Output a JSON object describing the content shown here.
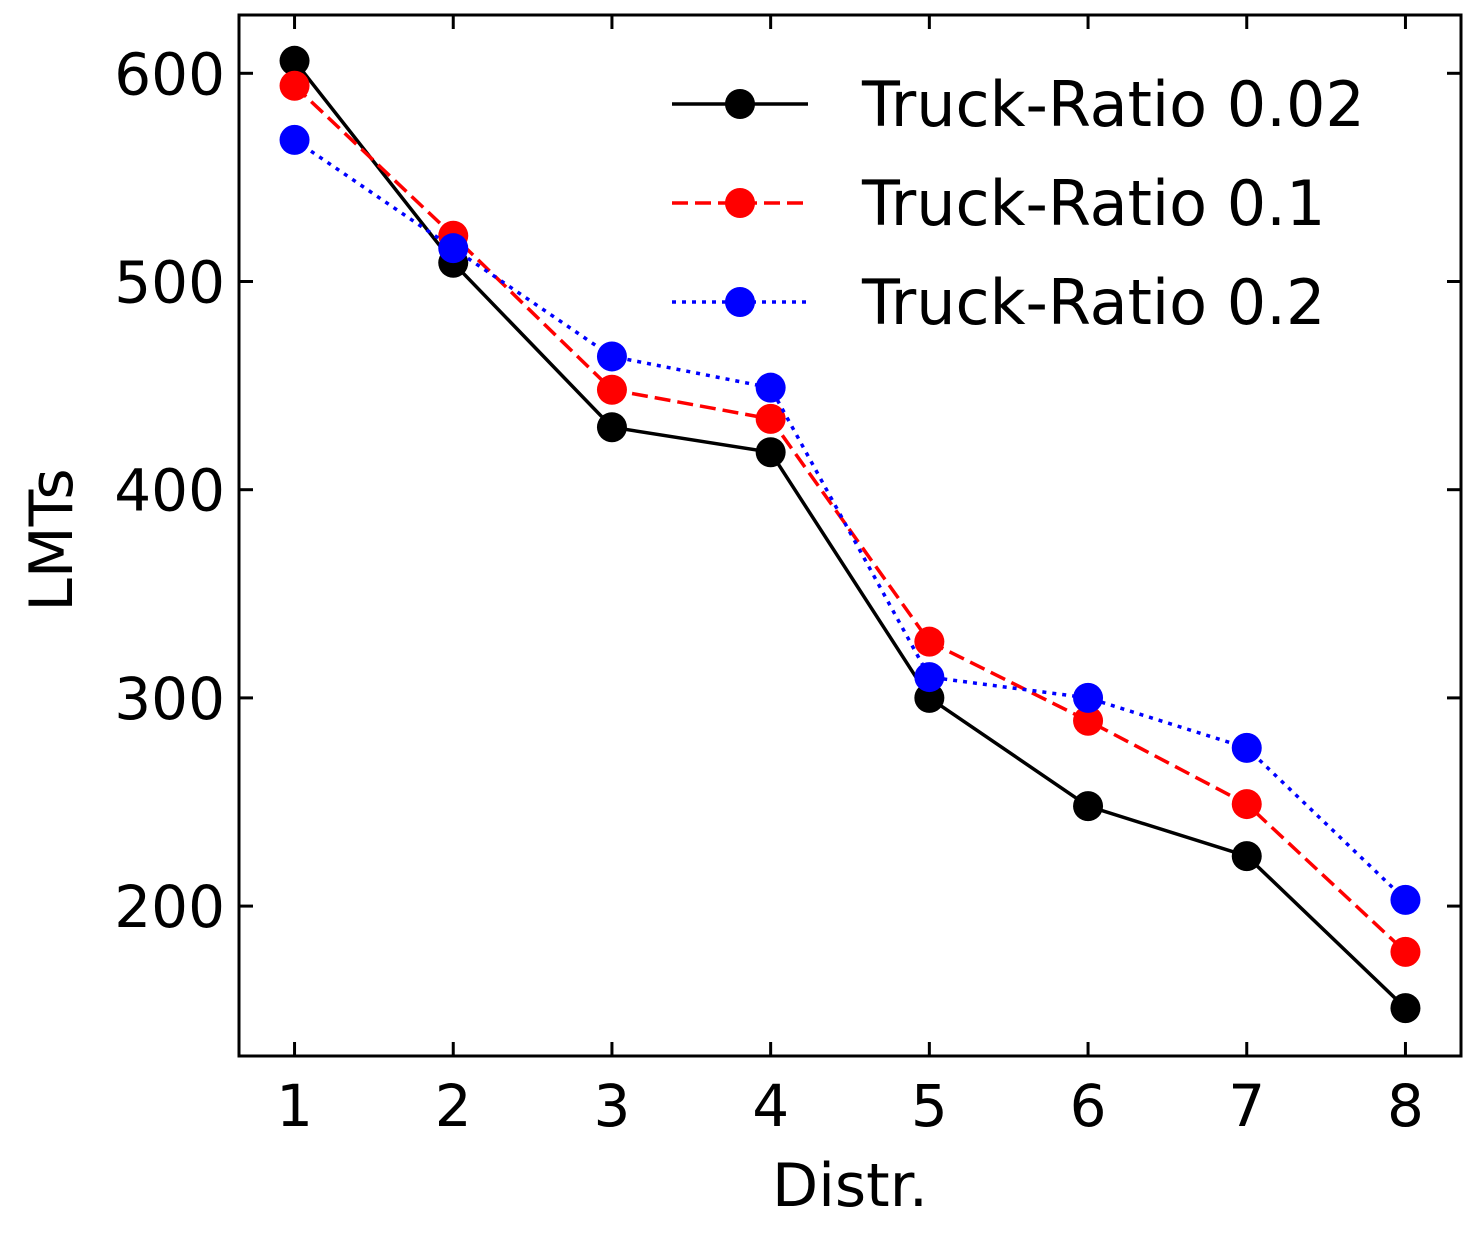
{
  "chart_data": {
    "type": "line",
    "title": "",
    "xlabel": "Distr.",
    "ylabel": "LMTs",
    "x": [
      1,
      2,
      3,
      4,
      5,
      6,
      7,
      8
    ],
    "xlim": [
      0.65,
      8.35
    ],
    "ylim": [
      128,
      628
    ],
    "xticks": [
      "1",
      "2",
      "3",
      "4",
      "5",
      "6",
      "7",
      "8"
    ],
    "yticks": [
      "200",
      "300",
      "400",
      "500",
      "600"
    ],
    "grid": false,
    "legend_position": "top-right",
    "series": [
      {
        "name": "Truck-Ratio 0.02",
        "color": "#000000",
        "dash": "solid",
        "values": [
          606,
          509,
          430,
          418,
          300,
          248,
          224,
          151
        ]
      },
      {
        "name": "Truck-Ratio 0.1",
        "color": "#ff0000",
        "dash": "dashed",
        "values": [
          594,
          522,
          448,
          434,
          327,
          289,
          249,
          178
        ]
      },
      {
        "name": "Truck-Ratio 0.2",
        "color": "#0000ff",
        "dash": "dotted",
        "values": [
          568,
          516,
          464,
          449,
          310,
          300,
          276,
          203
        ]
      }
    ]
  }
}
